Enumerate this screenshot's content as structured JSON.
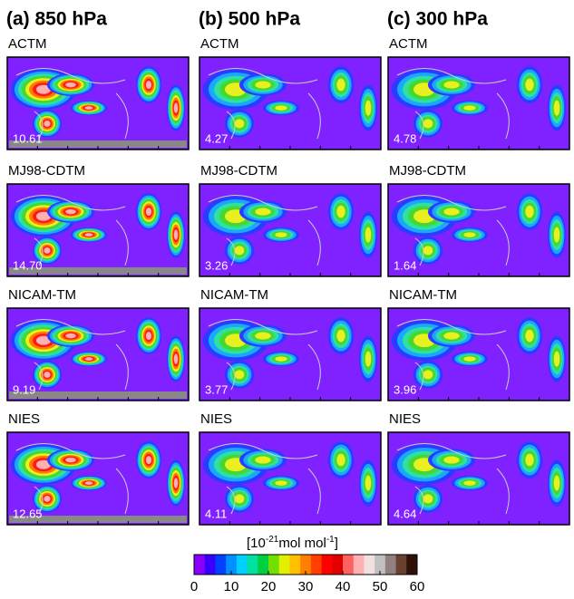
{
  "columns": [
    "(a) 850 hPa",
    "(b) 500 hPa",
    "(c) 300 hPa"
  ],
  "models": [
    "ACTM",
    "MJ98-CDTM",
    "NICAM-TM",
    "NIES"
  ],
  "panels": [
    [
      "10.61",
      "4.27",
      "4.78"
    ],
    [
      "14.70",
      "3.26",
      "1.64"
    ],
    [
      "9.19",
      "3.77",
      "3.96"
    ],
    [
      "12.65",
      "4.11",
      "4.64"
    ]
  ],
  "colorbar": {
    "unit": [
      "[10",
      "-21",
      "mol mol",
      "-1",
      "]"
    ],
    "ticks": [
      0,
      10,
      20,
      30,
      40,
      50,
      60
    ],
    "lim": [
      0,
      60
    ]
  }
}
